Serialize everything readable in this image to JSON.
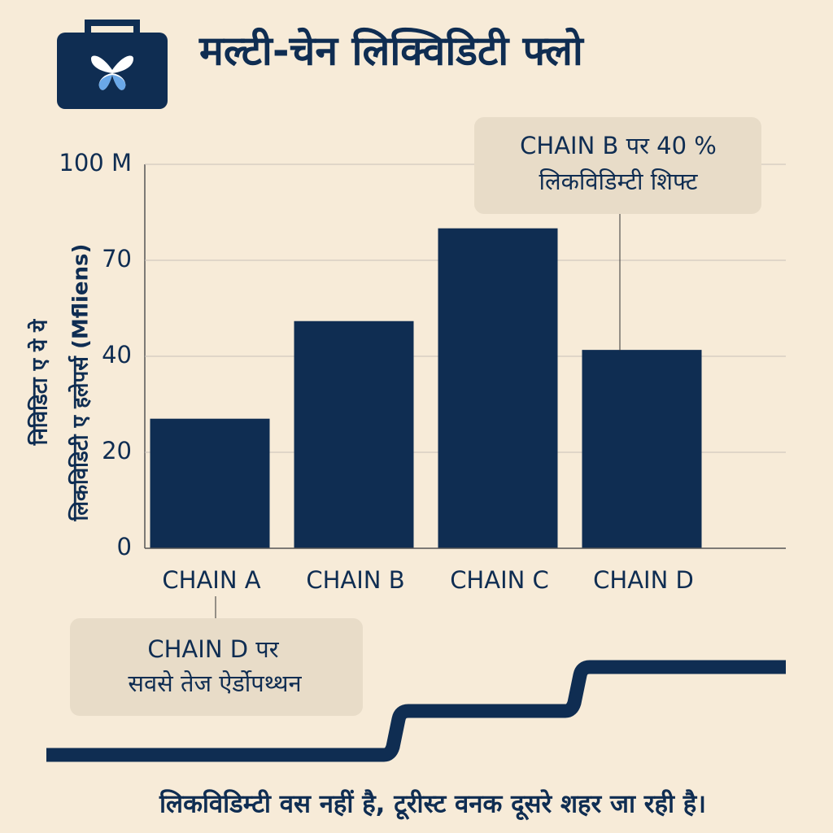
{
  "chart_data": {
    "type": "bar",
    "title": "मल्टी-चेन लिक्विडिटी फ्लो",
    "y_label": [
      "निविडिटा ए ये ये",
      "लिकविडिटी ए हलेपर्स (Mfliens)"
    ],
    "categories": [
      "CHAIN A",
      "CHAIN B",
      "CHAIN C",
      "CHAIN D"
    ],
    "values": [
      27,
      51,
      80,
      42
    ],
    "color": "#0f2d52",
    "ylim": [
      0,
      100
    ],
    "yticks": [
      0,
      20,
      40,
      70,
      {
        "value": 100,
        "label": "100 M"
      }
    ],
    "grid": true,
    "annotations": [
      {
        "lines": [
          "CHAIN B पर 40 %",
          "लिकविडिम्टी शिफ्ट"
        ]
      },
      {
        "lines": [
          "CHAIN D पर",
          "सवसे तेज ऐर्डोपथ्थन"
        ]
      }
    ],
    "caption": "लिकविडिम्टी वस नहीं है, टूरीस्ट वनक दूसरे शहर जा रही है।"
  }
}
